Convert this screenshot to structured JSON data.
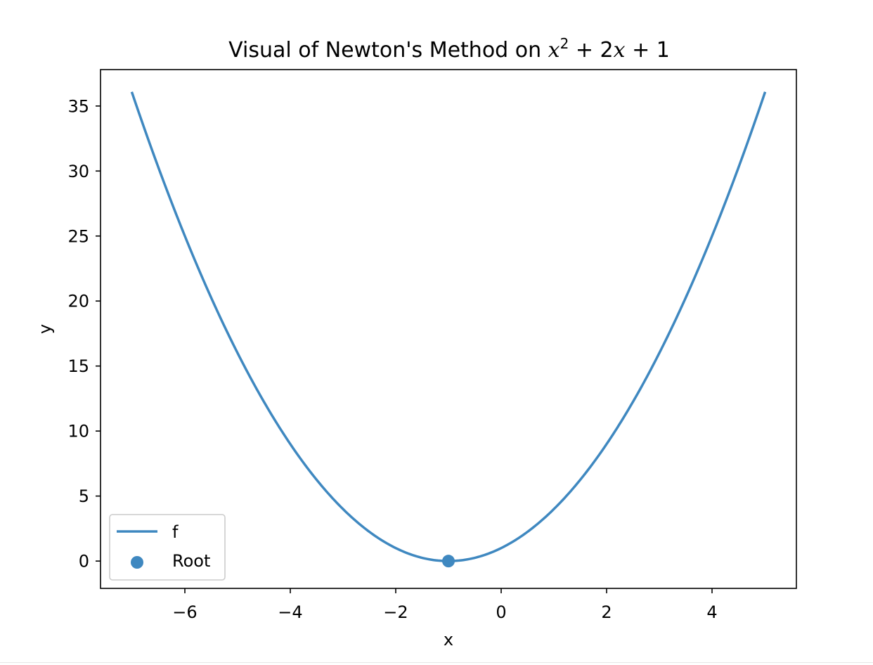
{
  "chart_data": {
    "type": "line",
    "title": {
      "prefix": "Visual of Newton's Method on ",
      "math": {
        "base": "x",
        "exp": "2",
        "rest": " + 2",
        "var2": "x",
        "tail": " + 1"
      }
    },
    "xlabel": "x",
    "ylabel": "y",
    "xlim": [
      -7.6,
      5.6
    ],
    "ylim": [
      -2.1,
      37.8
    ],
    "xticks": [
      -6,
      -4,
      -2,
      0,
      2,
      4
    ],
    "xtick_labels": [
      "−6",
      "−4",
      "−2",
      "0",
      "2",
      "4"
    ],
    "yticks": [
      0,
      5,
      10,
      15,
      20,
      25,
      30,
      35
    ],
    "ytick_labels": [
      "0",
      "5",
      "10",
      "15",
      "20",
      "25",
      "30",
      "35"
    ],
    "grid": false,
    "legend_position": "lower-left",
    "series": [
      {
        "name": "f",
        "kind": "line",
        "function": "x^2 + 2x + 1",
        "x_range": [
          -7,
          5
        ],
        "color": "#3f88c0"
      },
      {
        "name": "Root",
        "kind": "scatter",
        "x": [
          -1
        ],
        "y": [
          0
        ],
        "color": "#3f88c0"
      }
    ]
  }
}
